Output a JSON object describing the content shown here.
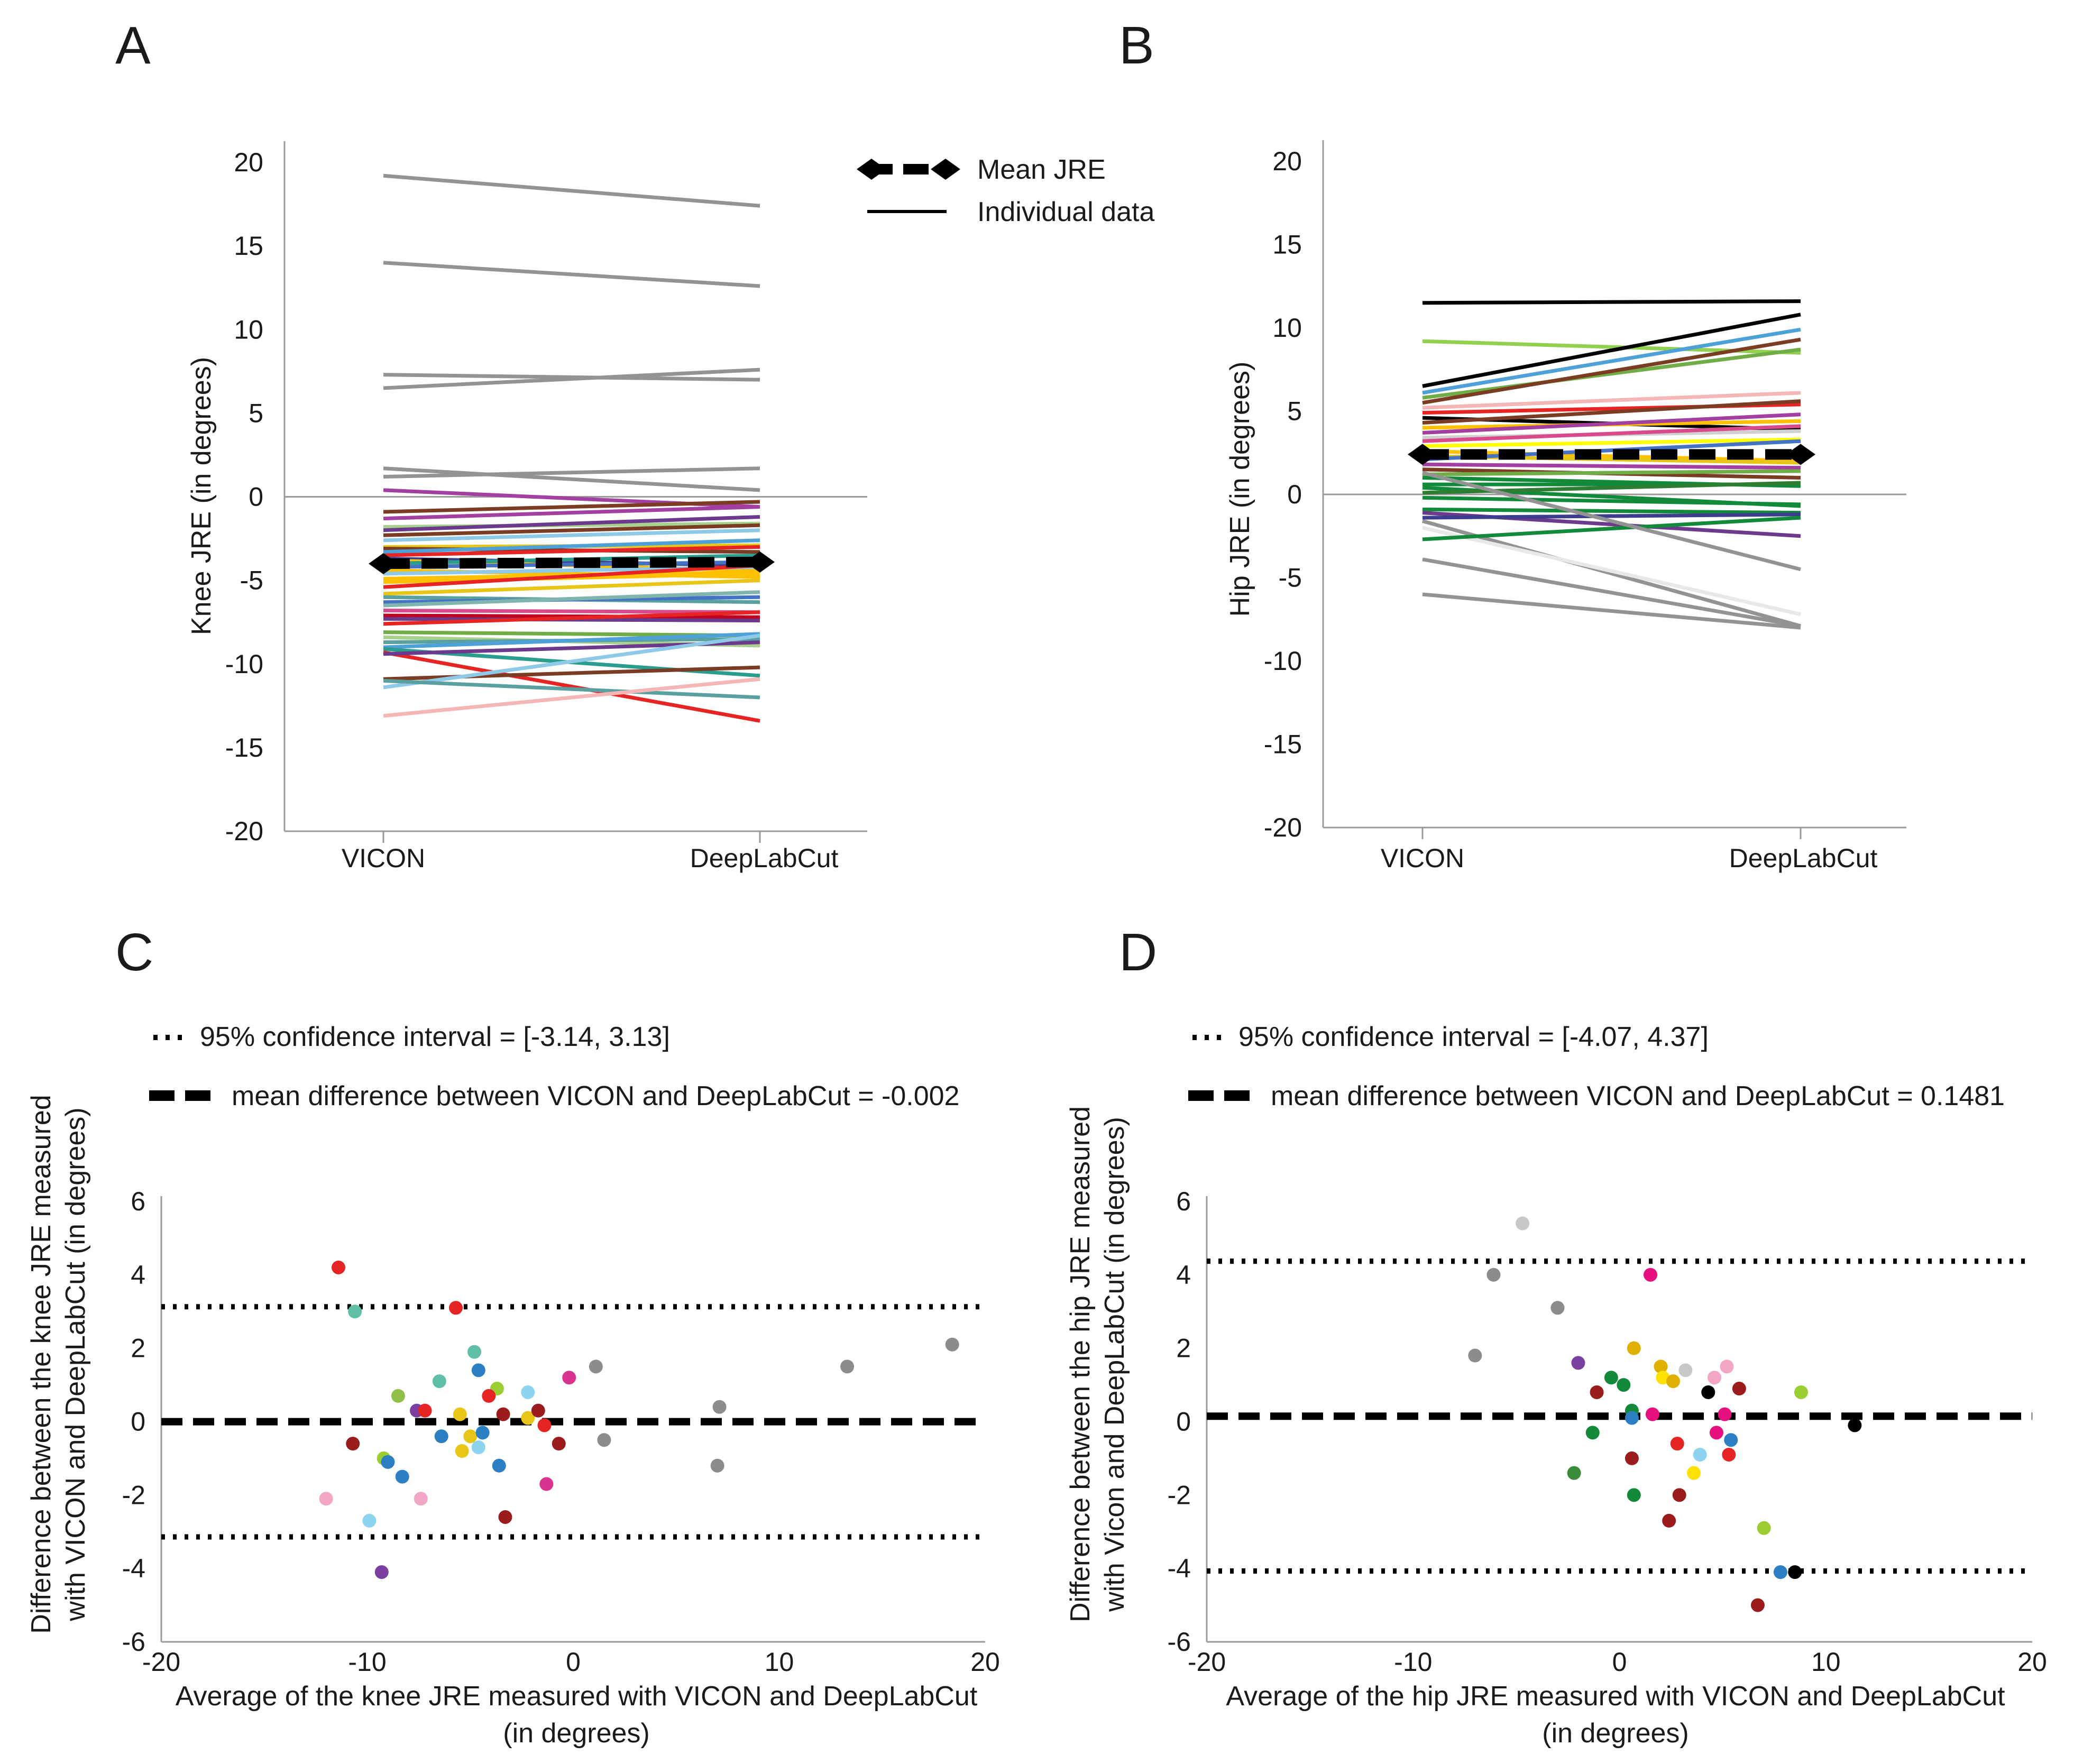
{
  "chart_data": [
    {
      "panel": "A",
      "type": "line",
      "ylabel": "Knee JRE (in degrees)",
      "categories": [
        "VICON",
        "DeepLabCut"
      ],
      "ylim": [
        -20,
        20
      ],
      "yticks": [
        "20",
        "15",
        "10",
        "5",
        "0",
        "-5",
        "-10",
        "-15",
        "-20"
      ],
      "legend": {
        "mean_label": "Mean JRE",
        "individual_label": "Individual data",
        "placement": "top-right"
      },
      "mean": {
        "name": "Mean JRE",
        "values": [
          -4.0,
          -3.9
        ],
        "color": "#000000"
      },
      "series": [
        {
          "values": [
            19.2,
            17.4
          ],
          "color": "#939393"
        },
        {
          "values": [
            14.0,
            12.6
          ],
          "color": "#939393"
        },
        {
          "values": [
            7.3,
            7.0
          ],
          "color": "#939393"
        },
        {
          "values": [
            6.5,
            7.6
          ],
          "color": "#939393"
        },
        {
          "values": [
            1.7,
            0.4
          ],
          "color": "#939393"
        },
        {
          "values": [
            1.2,
            1.7
          ],
          "color": "#939393"
        },
        {
          "values": [
            0.4,
            -0.6
          ],
          "color": "#a23fa0"
        },
        {
          "values": [
            -0.9,
            -0.3
          ],
          "color": "#7b3c24"
        },
        {
          "values": [
            -1.3,
            -0.6
          ],
          "color": "#a23fa0"
        },
        {
          "values": [
            -1.8,
            -1.6
          ],
          "color": "#a9d18e"
        },
        {
          "values": [
            -2.0,
            -1.2
          ],
          "color": "#6c3a8c"
        },
        {
          "values": [
            -2.3,
            -1.7
          ],
          "color": "#7b3c24"
        },
        {
          "values": [
            -2.6,
            -2.0
          ],
          "color": "#8ec9e8"
        },
        {
          "values": [
            -3.0,
            -2.9
          ],
          "color": "#e8c619"
        },
        {
          "values": [
            -3.1,
            -3.3
          ],
          "color": "#7b3c24"
        },
        {
          "values": [
            -3.3,
            -2.6
          ],
          "color": "#4ea0d8"
        },
        {
          "values": [
            -3.5,
            -3.0
          ],
          "color": "#e62424"
        },
        {
          "values": [
            -3.7,
            -4.1
          ],
          "color": "#3d3d8f"
        },
        {
          "values": [
            -3.8,
            -4.4
          ],
          "color": "#ffc000"
        },
        {
          "values": [
            -4.0,
            -3.5
          ],
          "color": "#2a9d8f"
        },
        {
          "values": [
            -4.2,
            -3.9
          ],
          "color": "#4472c4"
        },
        {
          "values": [
            -4.4,
            -4.8
          ],
          "color": "#ffc000"
        },
        {
          "values": [
            -4.6,
            -4.2
          ],
          "color": "#8ec9e8"
        },
        {
          "values": [
            -4.9,
            -4.5
          ],
          "color": "#ffc000"
        },
        {
          "values": [
            -5.1,
            -4.6
          ],
          "color": "#ffc000"
        },
        {
          "values": [
            -5.4,
            -4.1
          ],
          "color": "#e62424"
        },
        {
          "values": [
            -5.8,
            -5.0
          ],
          "color": "#e8c619"
        },
        {
          "values": [
            -6.0,
            -6.3
          ],
          "color": "#5aa0a0"
        },
        {
          "values": [
            -6.3,
            -6.0
          ],
          "color": "#4472c4"
        },
        {
          "values": [
            -6.5,
            -5.7
          ],
          "color": "#7fb5ad"
        },
        {
          "values": [
            -6.8,
            -6.9
          ],
          "color": "#d94a8c"
        },
        {
          "values": [
            -7.1,
            -7.2
          ],
          "color": "#c00020"
        },
        {
          "values": [
            -7.3,
            -7.4
          ],
          "color": "#6c3a8c"
        },
        {
          "values": [
            -7.6,
            -6.9
          ],
          "color": "#e62424"
        },
        {
          "values": [
            -8.1,
            -8.3
          ],
          "color": "#70ad47"
        },
        {
          "values": [
            -8.4,
            -8.9
          ],
          "color": "#a9d18e"
        },
        {
          "values": [
            -8.7,
            -8.5
          ],
          "color": "#5aa0a0"
        },
        {
          "values": [
            -9.0,
            -8.2
          ],
          "color": "#4ea0d8"
        },
        {
          "values": [
            -9.1,
            -10.7
          ],
          "color": "#2a9d8f"
        },
        {
          "values": [
            -9.3,
            -13.4
          ],
          "color": "#e62424"
        },
        {
          "values": [
            -9.4,
            -8.7
          ],
          "color": "#6c3a8c"
        },
        {
          "values": [
            -10.9,
            -10.2
          ],
          "color": "#7b3c24"
        },
        {
          "values": [
            -11.4,
            -8.3
          ],
          "color": "#8ec9e8"
        },
        {
          "values": [
            -11.0,
            -12.0
          ],
          "color": "#5aa0a0"
        },
        {
          "values": [
            -13.1,
            -10.9
          ],
          "color": "#f4b6b6"
        }
      ]
    },
    {
      "panel": "B",
      "type": "line",
      "ylabel": "Hip JRE (in degrees)",
      "categories": [
        "VICON",
        "DeepLabCut"
      ],
      "ylim": [
        -20,
        20
      ],
      "yticks": [
        "20",
        "15",
        "10",
        "5",
        "0",
        "-5",
        "-10",
        "-15",
        "-20"
      ],
      "mean": {
        "name": "Mean JRE",
        "values": [
          2.4,
          2.4
        ],
        "color": "#000000"
      },
      "series": [
        {
          "values": [
            11.5,
            11.6
          ],
          "color": "#000000"
        },
        {
          "values": [
            9.2,
            8.5
          ],
          "color": "#92d050"
        },
        {
          "values": [
            6.5,
            10.8
          ],
          "color": "#000000"
        },
        {
          "values": [
            6.1,
            9.9
          ],
          "color": "#4ea0d8"
        },
        {
          "values": [
            5.8,
            8.7
          ],
          "color": "#70ad47"
        },
        {
          "values": [
            5.5,
            9.3
          ],
          "color": "#7b3c24"
        },
        {
          "values": [
            5.2,
            6.1
          ],
          "color": "#f4b6b6"
        },
        {
          "values": [
            4.9,
            5.4
          ],
          "color": "#e62424"
        },
        {
          "values": [
            4.6,
            3.9
          ],
          "color": "#000000"
        },
        {
          "values": [
            4.3,
            5.6
          ],
          "color": "#7b3c24"
        },
        {
          "values": [
            4.0,
            4.4
          ],
          "color": "#ffc000"
        },
        {
          "values": [
            3.7,
            4.8
          ],
          "color": "#a23fa0"
        },
        {
          "values": [
            3.4,
            3.8
          ],
          "color": "#d0d0d0"
        },
        {
          "values": [
            3.2,
            4.1
          ],
          "color": "#d94a8c"
        },
        {
          "values": [
            2.9,
            3.3
          ],
          "color": "#ffff00"
        },
        {
          "values": [
            2.6,
            2.0
          ],
          "color": "#ffc000"
        },
        {
          "values": [
            2.3,
            1.9
          ],
          "color": "#e8c619"
        },
        {
          "values": [
            2.1,
            3.2
          ],
          "color": "#4472c4"
        },
        {
          "values": [
            1.8,
            1.6
          ],
          "color": "#a23fa0"
        },
        {
          "values": [
            1.5,
            1.0
          ],
          "color": "#7b3c24"
        },
        {
          "values": [
            1.2,
            1.4
          ],
          "color": "#70ad47"
        },
        {
          "values": [
            1.0,
            0.5
          ],
          "color": "#138a3a"
        },
        {
          "values": [
            0.6,
            0.6
          ],
          "color": "#138a3a"
        },
        {
          "values": [
            0.4,
            -0.7
          ],
          "color": "#138a3a"
        },
        {
          "values": [
            0.1,
            0.7
          ],
          "color": "#2e7d32"
        },
        {
          "values": [
            -0.2,
            -0.6
          ],
          "color": "#138a3a"
        },
        {
          "values": [
            -0.9,
            -1.1
          ],
          "color": "#138a3a"
        },
        {
          "values": [
            -1.1,
            -2.5
          ],
          "color": "#6c3a8c"
        },
        {
          "values": [
            -1.4,
            -1.2
          ],
          "color": "#3d3d8f"
        },
        {
          "values": [
            -1.6,
            -7.9
          ],
          "color": "#939393"
        },
        {
          "values": [
            -2.0,
            -7.2
          ],
          "color": "#e8e8e8"
        },
        {
          "values": [
            -2.7,
            -1.4
          ],
          "color": "#138a3a"
        },
        {
          "values": [
            -3.9,
            -7.9
          ],
          "color": "#939393"
        },
        {
          "values": [
            -6.0,
            -8.0
          ],
          "color": "#939393"
        },
        {
          "values": [
            1.3,
            -4.5
          ],
          "color": "#939393"
        }
      ]
    },
    {
      "panel": "C",
      "type": "scatter",
      "title_ci": "95% confidence interval = [-3.14, 3.13]",
      "title_mean": "mean difference between VICON and DeepLabCut = -0.002",
      "ylabel_line1": "Difference between the knee JRE measured",
      "ylabel_line2": "with VICON and DeepLabCut (in degrees)",
      "xlabel_line1": "Average of the knee JRE measured with VICON and DeepLabCut",
      "xlabel_line2": "(in degrees)",
      "xlim": [
        -20,
        20
      ],
      "ylim": [
        -6,
        6
      ],
      "xticks": [
        "-20",
        "-10",
        "0",
        "10",
        "20"
      ],
      "yticks": [
        "6",
        "4",
        "2",
        "0",
        "-2",
        "-4",
        "-6"
      ],
      "ci": [
        -3.14,
        3.13
      ],
      "mean_difference": -0.002,
      "points": [
        {
          "x": -11.4,
          "y": 4.2,
          "color": "#e62424"
        },
        {
          "x": -10.6,
          "y": 3.0,
          "color": "#5fbfa6"
        },
        {
          "x": -5.7,
          "y": 3.1,
          "color": "#e62424"
        },
        {
          "x": -4.8,
          "y": 1.9,
          "color": "#5fbfa6"
        },
        {
          "x": -4.6,
          "y": 1.4,
          "color": "#2d7fc3"
        },
        {
          "x": -6.5,
          "y": 1.1,
          "color": "#5fbfa6"
        },
        {
          "x": -3.7,
          "y": 0.9,
          "color": "#9acd32"
        },
        {
          "x": -2.2,
          "y": 0.8,
          "color": "#8ed3f0"
        },
        {
          "x": -0.2,
          "y": 1.2,
          "color": "#d9338f"
        },
        {
          "x": 1.1,
          "y": 1.5,
          "color": "#8c8c8c"
        },
        {
          "x": -8.5,
          "y": 0.7,
          "color": "#8fc14a"
        },
        {
          "x": -7.6,
          "y": 0.3,
          "color": "#7b3fa0"
        },
        {
          "x": -7.2,
          "y": 0.3,
          "color": "#e62424"
        },
        {
          "x": -5.5,
          "y": 0.2,
          "color": "#e8c619"
        },
        {
          "x": -4.1,
          "y": 0.7,
          "color": "#e62424"
        },
        {
          "x": -3.4,
          "y": 0.2,
          "color": "#9b1c1c"
        },
        {
          "x": -2.2,
          "y": 0.1,
          "color": "#e8c619"
        },
        {
          "x": -1.7,
          "y": 0.3,
          "color": "#9b1c1c"
        },
        {
          "x": -1.4,
          "y": -0.1,
          "color": "#e62424"
        },
        {
          "x": -0.7,
          "y": -0.6,
          "color": "#9b1c1c"
        },
        {
          "x": 1.5,
          "y": -0.5,
          "color": "#8c8c8c"
        },
        {
          "x": 7.1,
          "y": 0.4,
          "color": "#8c8c8c"
        },
        {
          "x": 13.3,
          "y": 1.5,
          "color": "#8c8c8c"
        },
        {
          "x": 18.4,
          "y": 2.1,
          "color": "#8c8c8c"
        },
        {
          "x": 7.0,
          "y": -1.2,
          "color": "#8c8c8c"
        },
        {
          "x": -10.7,
          "y": -0.6,
          "color": "#9b1c1c"
        },
        {
          "x": -9.2,
          "y": -1.0,
          "color": "#9acd32"
        },
        {
          "x": -9.0,
          "y": -1.1,
          "color": "#2d7fc3"
        },
        {
          "x": -8.3,
          "y": -1.5,
          "color": "#2d7fc3"
        },
        {
          "x": -6.4,
          "y": -0.4,
          "color": "#2d7fc3"
        },
        {
          "x": -5.4,
          "y": -0.8,
          "color": "#e8c619"
        },
        {
          "x": -5.0,
          "y": -0.4,
          "color": "#e8c619"
        },
        {
          "x": -4.6,
          "y": -0.7,
          "color": "#8ed3f0"
        },
        {
          "x": -4.4,
          "y": -0.3,
          "color": "#2d7fc3"
        },
        {
          "x": -3.6,
          "y": -1.2,
          "color": "#2d7fc3"
        },
        {
          "x": -1.3,
          "y": -1.7,
          "color": "#d9338f"
        },
        {
          "x": -3.3,
          "y": -2.6,
          "color": "#9b1c1c"
        },
        {
          "x": -12.0,
          "y": -2.1,
          "color": "#f4a6c6"
        },
        {
          "x": -9.9,
          "y": -2.7,
          "color": "#8ed3f0"
        },
        {
          "x": -7.4,
          "y": -2.1,
          "color": "#f4a6c6"
        },
        {
          "x": -9.3,
          "y": -4.1,
          "color": "#7b3fa0"
        }
      ]
    },
    {
      "panel": "D",
      "type": "scatter",
      "title_ci": "95% confidence interval = [-4.07, 4.37]",
      "title_mean": "mean difference between VICON and DeepLabCut = 0.1481",
      "ylabel_line1": "Difference between the hip JRE measured",
      "ylabel_line2": "with Vicon and DeepLabCut (in degrees)",
      "xlabel_line1": "Average of the hip JRE measured with VICON and DeepLabCut",
      "xlabel_line2": "(in degrees)",
      "xlim": [
        -20,
        20
      ],
      "ylim": [
        -6,
        6
      ],
      "xticks": [
        "-20",
        "-10",
        "0",
        "10",
        "20"
      ],
      "yticks": [
        "6",
        "4",
        "2",
        "0",
        "-2",
        "-4",
        "-6"
      ],
      "ci": [
        -4.07,
        4.37
      ],
      "mean_difference": 0.1481,
      "points": [
        {
          "x": -4.7,
          "y": 5.4,
          "color": "#c8c8c8"
        },
        {
          "x": -6.1,
          "y": 4.0,
          "color": "#8c8c8c"
        },
        {
          "x": -3.0,
          "y": 3.1,
          "color": "#8c8c8c"
        },
        {
          "x": -7.0,
          "y": 1.8,
          "color": "#8c8c8c"
        },
        {
          "x": 1.5,
          "y": 4.0,
          "color": "#e6117f"
        },
        {
          "x": -2.0,
          "y": 1.6,
          "color": "#7b3fa0"
        },
        {
          "x": 0.7,
          "y": 2.0,
          "color": "#e0b000"
        },
        {
          "x": 2.0,
          "y": 1.5,
          "color": "#e0b000"
        },
        {
          "x": 3.2,
          "y": 1.4,
          "color": "#c8c8c8"
        },
        {
          "x": 2.1,
          "y": 1.2,
          "color": "#ffe000"
        },
        {
          "x": 2.6,
          "y": 1.1,
          "color": "#e0b000"
        },
        {
          "x": 5.2,
          "y": 1.5,
          "color": "#f4a6c6"
        },
        {
          "x": 4.6,
          "y": 1.2,
          "color": "#f4a6c6"
        },
        {
          "x": -1.1,
          "y": 0.8,
          "color": "#9b1c1c"
        },
        {
          "x": -0.4,
          "y": 1.2,
          "color": "#138a3a"
        },
        {
          "x": 0.2,
          "y": 1.0,
          "color": "#138a3a"
        },
        {
          "x": 4.3,
          "y": 0.8,
          "color": "#000000"
        },
        {
          "x": 5.8,
          "y": 0.9,
          "color": "#9b1c1c"
        },
        {
          "x": 8.8,
          "y": 0.8,
          "color": "#9acd32"
        },
        {
          "x": 0.6,
          "y": 0.3,
          "color": "#138a3a"
        },
        {
          "x": 0.6,
          "y": 0.1,
          "color": "#2d7fc3"
        },
        {
          "x": 1.6,
          "y": 0.2,
          "color": "#e6117f"
        },
        {
          "x": 5.1,
          "y": 0.2,
          "color": "#e6117f"
        },
        {
          "x": 11.4,
          "y": -0.1,
          "color": "#000000"
        },
        {
          "x": -1.3,
          "y": -0.3,
          "color": "#138a3a"
        },
        {
          "x": 4.7,
          "y": -0.3,
          "color": "#e6117f"
        },
        {
          "x": 2.8,
          "y": -0.6,
          "color": "#e62424"
        },
        {
          "x": 5.4,
          "y": -0.5,
          "color": "#2d7fc3"
        },
        {
          "x": 0.6,
          "y": -1.0,
          "color": "#9b1c1c"
        },
        {
          "x": 3.9,
          "y": -0.9,
          "color": "#8ed3f0"
        },
        {
          "x": 5.3,
          "y": -0.9,
          "color": "#e62424"
        },
        {
          "x": -2.2,
          "y": -1.4,
          "color": "#3c8a3c"
        },
        {
          "x": 3.6,
          "y": -1.4,
          "color": "#ffe000"
        },
        {
          "x": 0.7,
          "y": -2.0,
          "color": "#138a3a"
        },
        {
          "x": 2.9,
          "y": -2.0,
          "color": "#9b1c1c"
        },
        {
          "x": 2.4,
          "y": -2.7,
          "color": "#9b1c1c"
        },
        {
          "x": 7.0,
          "y": -2.9,
          "color": "#9acd32"
        },
        {
          "x": 7.8,
          "y": -4.1,
          "color": "#2d7fc3"
        },
        {
          "x": 8.5,
          "y": -4.1,
          "color": "#000000"
        },
        {
          "x": 6.7,
          "y": -5.0,
          "color": "#9b1c1c"
        }
      ]
    }
  ]
}
